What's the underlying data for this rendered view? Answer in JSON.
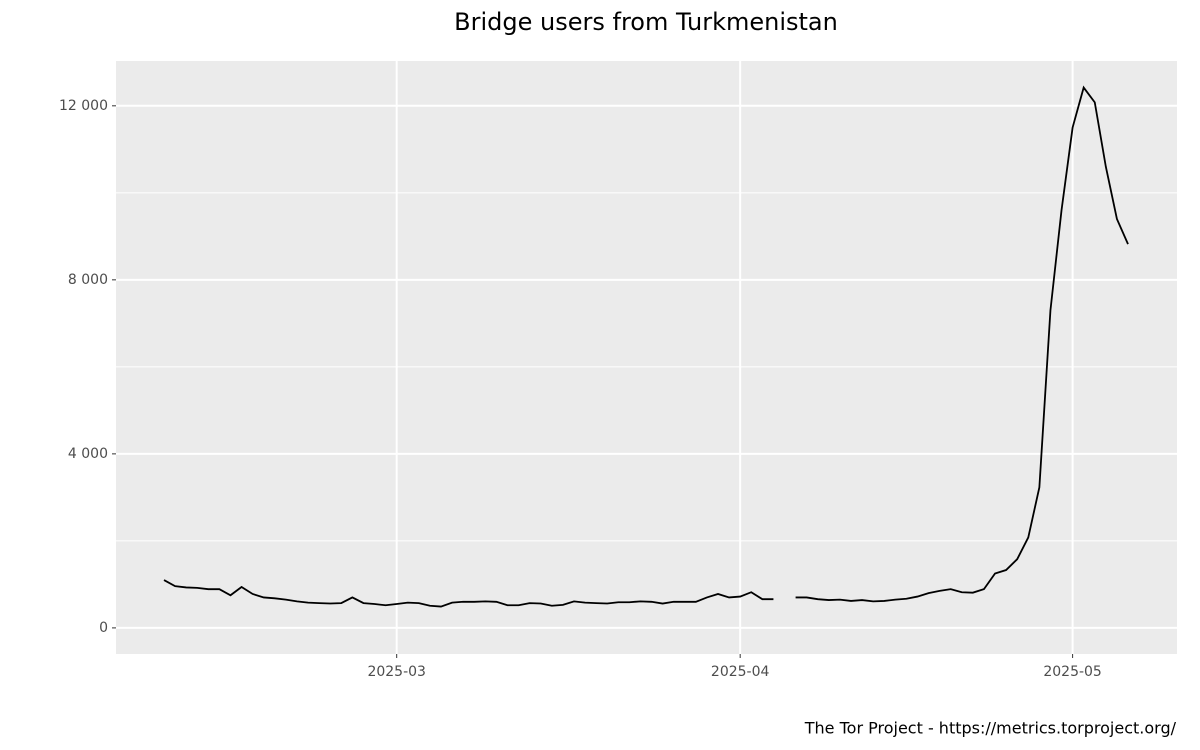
{
  "chart_data": {
    "type": "line",
    "title": "Bridge users from Turkmenistan",
    "caption": "The Tor Project - https://metrics.torproject.org/",
    "categories": [
      null,
      null,
      null,
      null,
      null,
      null,
      null,
      null,
      null,
      null,
      null,
      null,
      null,
      null,
      null,
      null,
      null,
      null,
      null,
      null,
      null,
      "2025-03",
      null,
      null,
      null,
      null,
      null,
      null,
      null,
      null,
      null,
      null,
      null,
      null,
      null,
      null,
      null,
      null,
      null,
      null,
      null,
      null,
      null,
      null,
      null,
      null,
      null,
      null,
      null,
      null,
      null,
      null,
      "2025-04",
      null,
      null,
      null,
      null,
      null,
      null,
      null,
      null,
      null,
      null,
      null,
      null,
      null,
      null,
      null,
      null,
      null,
      null,
      null,
      null,
      null,
      null,
      null,
      null,
      null,
      null,
      null,
      null,
      null,
      "2025-05",
      null,
      null,
      null,
      null,
      null
    ],
    "values": [
      1100,
      960,
      930,
      920,
      890,
      890,
      750,
      940,
      780,
      700,
      680,
      650,
      610,
      580,
      570,
      560,
      570,
      700,
      570,
      550,
      520,
      550,
      580,
      570,
      510,
      490,
      580,
      600,
      600,
      610,
      600,
      520,
      520,
      570,
      560,
      510,
      530,
      610,
      580,
      570,
      560,
      590,
      590,
      610,
      600,
      560,
      600,
      600,
      600,
      700,
      780,
      700,
      720,
      820,
      660,
      660,
      null,
      700,
      700,
      660,
      640,
      650,
      620,
      640,
      610,
      620,
      650,
      670,
      720,
      800,
      850,
      890,
      820,
      810,
      890,
      1250,
      1330,
      1580,
      2080,
      3230,
      7300,
      9600,
      11500,
      12420,
      12080,
      10600,
      9400,
      8820
    ],
    "color": "#000000",
    "ylim": [
      -600,
      13030
    ],
    "yticks": [
      0,
      {
        "value": 4000,
        "label": "4 000"
      },
      {
        "value": 8000,
        "label": "8 000"
      },
      {
        "value": 12000,
        "label": "12 000"
      }
    ],
    "grid": true
  }
}
